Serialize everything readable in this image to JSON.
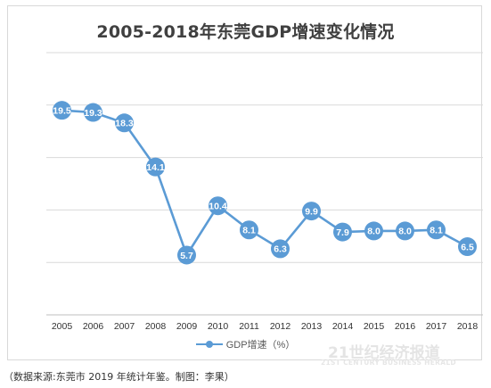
{
  "chart_data": {
    "type": "line",
    "title": "2005-2018年东莞GDP增速变化情况",
    "categories": [
      "2005",
      "2006",
      "2007",
      "2008",
      "2009",
      "2010",
      "2011",
      "2012",
      "2013",
      "2014",
      "2015",
      "2016",
      "2017",
      "2018"
    ],
    "series": [
      {
        "name": "GDP增速（%）",
        "values": [
          19.5,
          19.3,
          18.3,
          14.1,
          5.7,
          10.4,
          8.1,
          6.3,
          9.9,
          7.9,
          8.0,
          8.0,
          8.1,
          6.5
        ],
        "labels": [
          "19.5",
          "19.3",
          "18.3",
          "14.1",
          "5.7",
          "10.4",
          "8.1",
          "6.3",
          "9.9",
          "7.9",
          "8.0",
          "8.0",
          "8.1",
          "6.5"
        ]
      }
    ],
    "xlabel": "",
    "ylabel": "",
    "ylim": [
      0,
      25
    ],
    "grid": true,
    "legend_position": "bottom",
    "color": "#5b9bd5"
  },
  "watermark": {
    "main": "21世纪经济报道",
    "sub": "21ST CENTURY BUSINESS HERALD"
  },
  "caption": "（数据来源:东莞市 2019 年统计年鉴。制图：李果）"
}
